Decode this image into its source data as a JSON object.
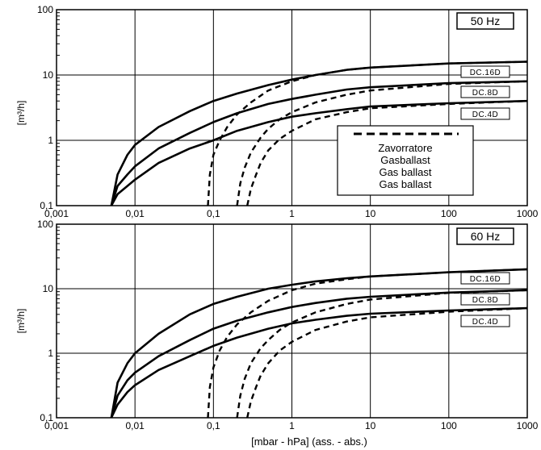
{
  "chart_data": [
    {
      "type": "line",
      "frequency_label": "50 Hz",
      "xscale": "log",
      "yscale": "log",
      "xlim": [
        0.001,
        1000
      ],
      "ylim": [
        0.1,
        100
      ],
      "x_ticks": [
        "0,001",
        "0,01",
        "0,1",
        "1",
        "10",
        "100",
        "1000"
      ],
      "y_ticks": [
        "0,1",
        "1",
        "10",
        "100"
      ],
      "ylabel": "[m³/h]",
      "xlabel": "",
      "grid": true,
      "series": [
        {
          "name": "DC.16D",
          "style": "solid",
          "x": [
            0.005,
            0.006,
            0.008,
            0.01,
            0.02,
            0.05,
            0.1,
            0.2,
            0.5,
            1,
            2,
            5,
            10,
            100,
            1000
          ],
          "y": [
            0.1,
            0.3,
            0.6,
            0.85,
            1.6,
            2.8,
            4.0,
            5.2,
            7.0,
            8.5,
            10,
            12,
            13,
            15,
            16
          ]
        },
        {
          "name": "DC.8D",
          "style": "solid",
          "x": [
            0.005,
            0.006,
            0.008,
            0.01,
            0.02,
            0.05,
            0.1,
            0.2,
            0.5,
            1,
            2,
            5,
            10,
            100,
            1000
          ],
          "y": [
            0.1,
            0.2,
            0.3,
            0.4,
            0.75,
            1.3,
            1.9,
            2.6,
            3.6,
            4.3,
            5.0,
            6.0,
            6.5,
            7.5,
            8.0
          ]
        },
        {
          "name": "DC.4D",
          "style": "solid",
          "x": [
            0.005,
            0.006,
            0.008,
            0.01,
            0.02,
            0.05,
            0.1,
            0.2,
            0.5,
            1,
            2,
            5,
            10,
            100,
            1000
          ],
          "y": [
            0.1,
            0.15,
            0.2,
            0.25,
            0.45,
            0.75,
            1.0,
            1.4,
            1.9,
            2.3,
            2.6,
            3.0,
            3.3,
            3.7,
            4.0
          ]
        },
        {
          "name": "DC.16D gas ballast",
          "style": "dashed",
          "x": [
            0.085,
            0.09,
            0.1,
            0.12,
            0.15,
            0.2,
            0.3,
            0.5,
            1,
            2,
            5,
            10,
            100,
            1000
          ],
          "y": [
            0.1,
            0.3,
            0.6,
            1.0,
            1.6,
            2.5,
            3.8,
            5.8,
            8.0,
            10,
            12,
            13,
            15,
            16
          ]
        },
        {
          "name": "DC.8D gas ballast",
          "style": "dashed",
          "x": [
            0.2,
            0.22,
            0.25,
            0.3,
            0.4,
            0.5,
            0.7,
            1,
            2,
            5,
            10,
            100,
            1000
          ],
          "y": [
            0.1,
            0.22,
            0.38,
            0.65,
            1.1,
            1.5,
            2.1,
            2.7,
            3.8,
            5.0,
            5.8,
            7.3,
            8.0
          ]
        },
        {
          "name": "DC.4D gas ballast",
          "style": "dashed",
          "x": [
            0.27,
            0.3,
            0.35,
            0.4,
            0.5,
            0.7,
            1,
            2,
            5,
            10,
            100,
            1000
          ],
          "y": [
            0.1,
            0.18,
            0.3,
            0.45,
            0.7,
            1.05,
            1.4,
            2.1,
            2.7,
            3.1,
            3.6,
            4.0
          ]
        }
      ],
      "curve_labels": [
        "DC.16D",
        "DC.8D",
        "DC.4D"
      ],
      "legend": {
        "placement": "right",
        "entries": [
          "Zavorratore",
          "Gasballast",
          "Gas ballast",
          "Gas ballast"
        ]
      }
    },
    {
      "type": "line",
      "frequency_label": "60 Hz",
      "xscale": "log",
      "yscale": "log",
      "xlim": [
        0.001,
        1000
      ],
      "ylim": [
        0.1,
        100
      ],
      "x_ticks": [
        "0,001",
        "0,01",
        "0,1",
        "1",
        "10",
        "100",
        "1000"
      ],
      "y_ticks": [
        "0,1",
        "1",
        "10",
        "100"
      ],
      "ylabel": "[m³/h]",
      "xlabel": "[mbar - hPa] (ass. - abs.)",
      "grid": true,
      "series": [
        {
          "name": "DC.16D",
          "style": "solid",
          "x": [
            0.005,
            0.006,
            0.008,
            0.01,
            0.02,
            0.05,
            0.1,
            0.2,
            0.5,
            1,
            2,
            5,
            10,
            100,
            1000
          ],
          "y": [
            0.1,
            0.35,
            0.7,
            1.0,
            2.0,
            4.0,
            5.8,
            7.5,
            10,
            11.5,
            13,
            14.5,
            15.5,
            18,
            20
          ]
        },
        {
          "name": "DC.8D",
          "style": "solid",
          "x": [
            0.005,
            0.006,
            0.008,
            0.01,
            0.02,
            0.05,
            0.1,
            0.2,
            0.5,
            1,
            2,
            5,
            10,
            100,
            1000
          ],
          "y": [
            0.1,
            0.22,
            0.38,
            0.5,
            0.9,
            1.6,
            2.4,
            3.2,
            4.3,
            5.2,
            6.0,
            7.0,
            7.5,
            8.7,
            9.5
          ]
        },
        {
          "name": "DC.4D",
          "style": "solid",
          "x": [
            0.005,
            0.006,
            0.008,
            0.01,
            0.02,
            0.05,
            0.1,
            0.2,
            0.5,
            1,
            2,
            5,
            10,
            100,
            1000
          ],
          "y": [
            0.1,
            0.16,
            0.25,
            0.32,
            0.55,
            0.9,
            1.3,
            1.75,
            2.4,
            2.9,
            3.3,
            3.8,
            4.1,
            4.6,
            5.0
          ]
        },
        {
          "name": "DC.16D gas ballast",
          "style": "dashed",
          "x": [
            0.085,
            0.09,
            0.1,
            0.12,
            0.15,
            0.2,
            0.3,
            0.5,
            1,
            2,
            5,
            10,
            100,
            1000
          ],
          "y": [
            0.1,
            0.3,
            0.6,
            1.1,
            1.8,
            2.8,
            4.3,
            6.5,
            9.5,
            12,
            14,
            15.5,
            18,
            20
          ]
        },
        {
          "name": "DC.8D gas ballast",
          "style": "dashed",
          "x": [
            0.2,
            0.22,
            0.25,
            0.3,
            0.4,
            0.5,
            0.7,
            1,
            2,
            5,
            10,
            100,
            1000
          ],
          "y": [
            0.1,
            0.22,
            0.4,
            0.7,
            1.2,
            1.6,
            2.3,
            3.0,
            4.3,
            5.8,
            6.8,
            8.6,
            9.5
          ]
        },
        {
          "name": "DC.4D gas ballast",
          "style": "dashed",
          "x": [
            0.27,
            0.3,
            0.35,
            0.4,
            0.5,
            0.7,
            1,
            2,
            5,
            10,
            100,
            1000
          ],
          "y": [
            0.1,
            0.18,
            0.3,
            0.45,
            0.7,
            1.1,
            1.5,
            2.3,
            3.1,
            3.6,
            4.4,
            5.0
          ]
        }
      ],
      "curve_labels": [
        "DC.16D",
        "DC.8D",
        "DC.4D"
      ]
    }
  ]
}
